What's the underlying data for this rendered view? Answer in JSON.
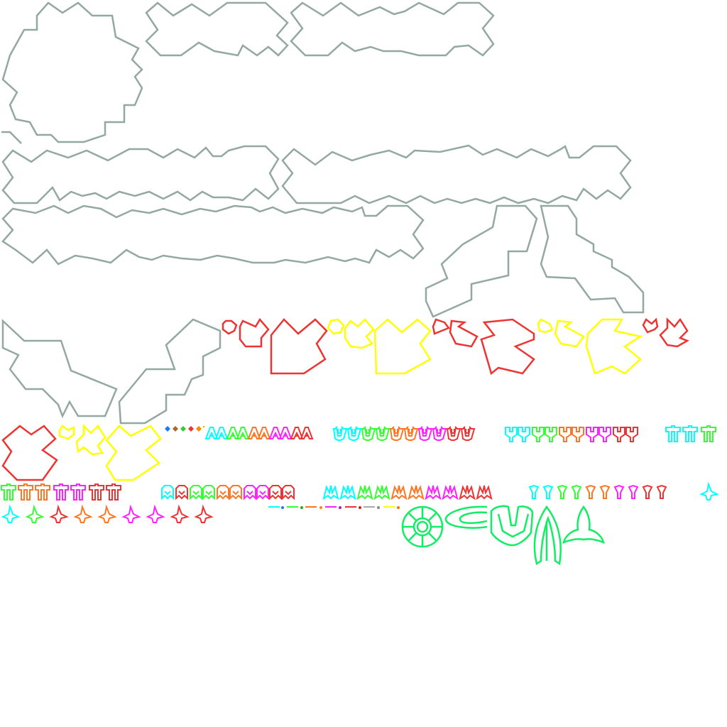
{
  "sheet": {
    "background": "#ffffff",
    "palette": {
      "terrain": "#93a8a2",
      "red": "#ee3333",
      "yellow": "#ffff00",
      "cyan": "#00ffff",
      "green": "#33ff33",
      "orange": "#ff7722",
      "magenta": "#ff22ff",
      "boss": "#11ee66",
      "gray": "#aaaaaa"
    },
    "groups": [
      "terrain-chunks",
      "asteroids-red",
      "asteroids-yellow",
      "gems",
      "ships-a",
      "ships-u",
      "ships-bell",
      "ships-t",
      "ships-m",
      "ships-arrow",
      "ships-wing",
      "lasers",
      "boss-parts"
    ],
    "ship_color_order": [
      "cyan",
      "green",
      "orange",
      "magenta",
      "red"
    ]
  }
}
